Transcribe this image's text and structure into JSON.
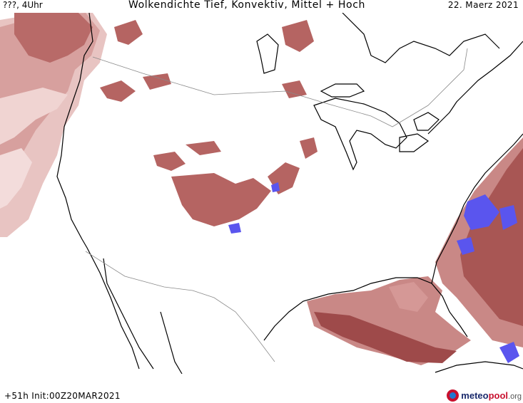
{
  "header": {
    "run_label": "???, 4Uhr",
    "title": "Wolkendichte  Tief, Konvektiv, Mittel + Hoch",
    "date": "22. Maerz 2021"
  },
  "footer": {
    "init_label": "+51h Init:00Z20MAR2021"
  },
  "logo": {
    "name_a": "meteo",
    "name_b": "pool",
    "tld": ".org"
  },
  "colors": {
    "cloud_light": "#e2b8b6",
    "cloud_mid": "#c98886",
    "cloud_dark": "#9e4a4a",
    "cloud_max": "#5555ee",
    "coast": "#000000",
    "border": "#8a8a8a"
  }
}
